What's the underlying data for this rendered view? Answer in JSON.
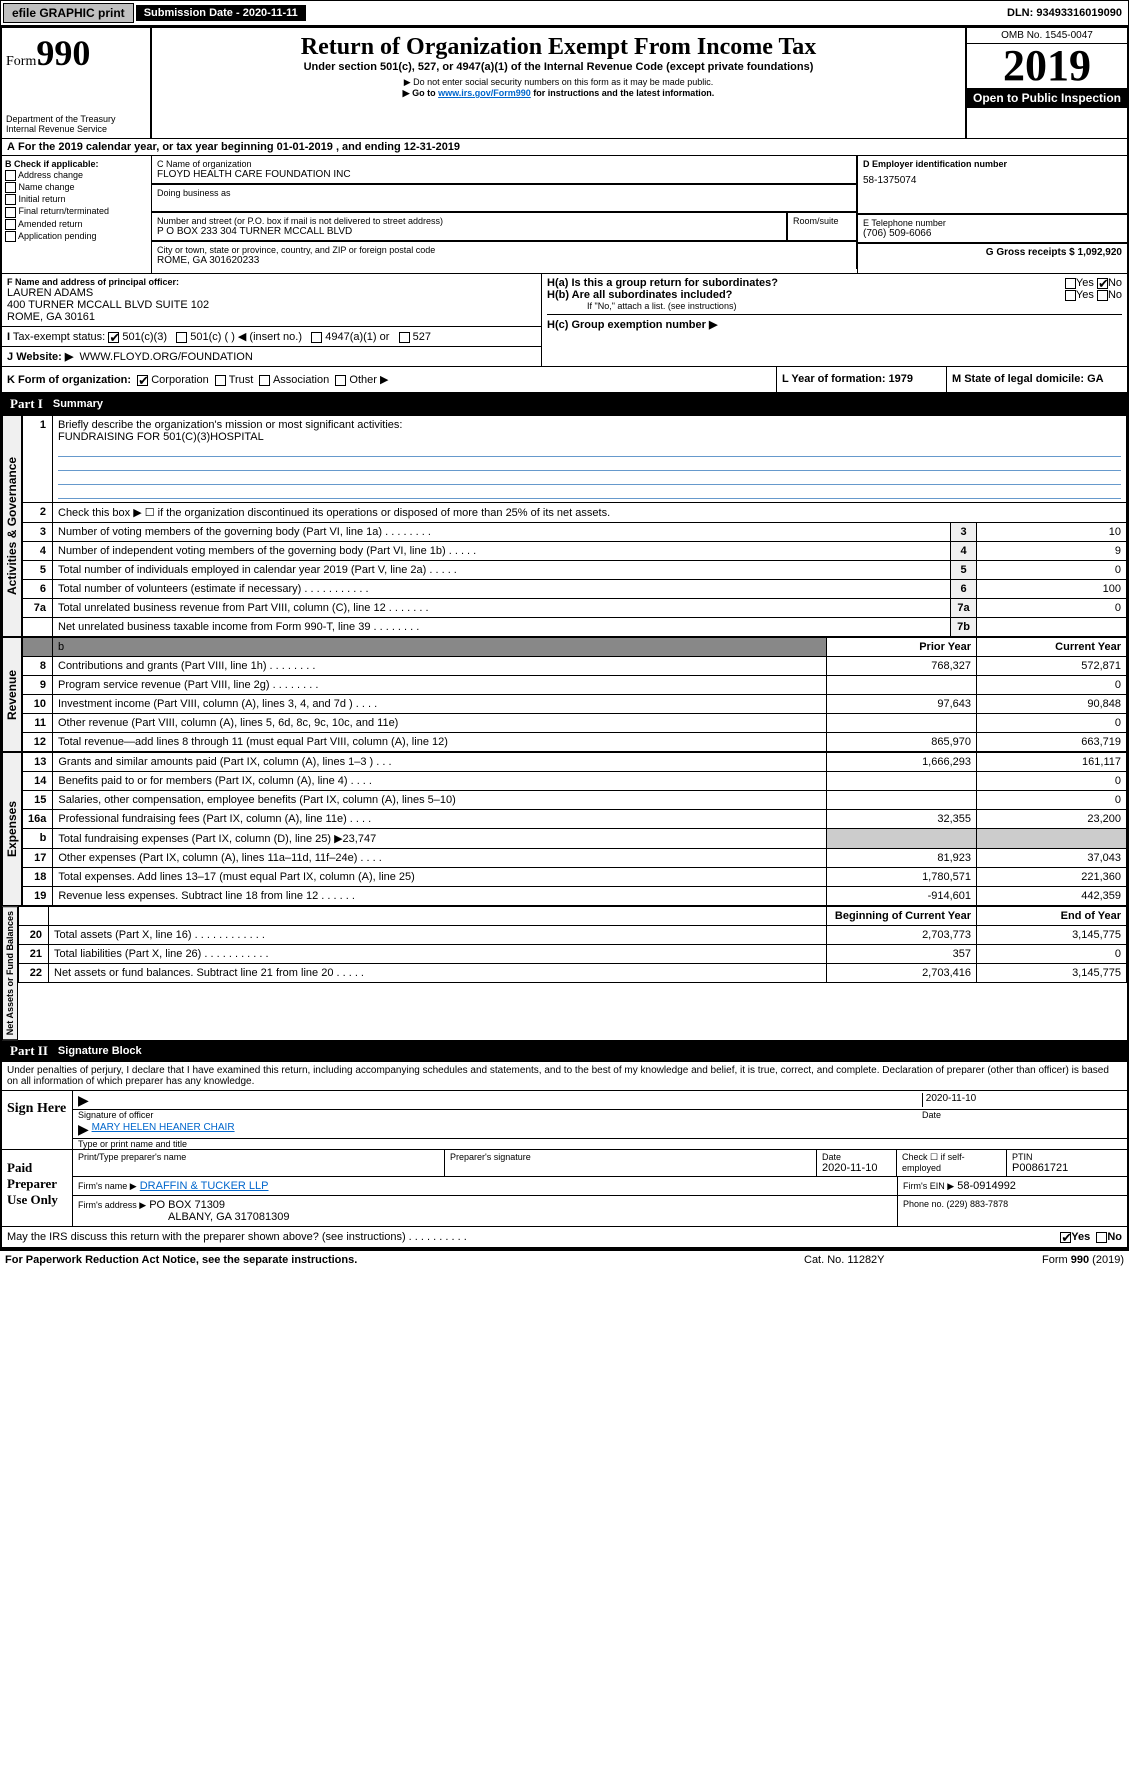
{
  "topbar": {
    "efile": "efile GRAPHIC print",
    "submission_label": "Submission Date - 2020-11-11",
    "dln": "DLN: 93493316019090"
  },
  "header": {
    "form_label": "Form",
    "form_number": "990",
    "dept": "Department of the Treasury",
    "irs": "Internal Revenue Service",
    "title": "Return of Organization Exempt From Income Tax",
    "subtitle1": "Under section 501(c), 527, or 4947(a)(1) of the Internal Revenue Code (except private foundations)",
    "subtitle2": "▶ Do not enter social security numbers on this form as it may be made public.",
    "subtitle3_pre": "▶ Go to ",
    "subtitle3_link": "www.irs.gov/Form990",
    "subtitle3_post": " for instructions and the latest information.",
    "omb": "OMB No. 1545-0047",
    "year": "2019",
    "inspect": "Open to Public Inspection"
  },
  "line_a": "For the 2019 calendar year, or tax year beginning 01-01-2019     , and ending 12-31-2019",
  "box_b": {
    "header": "B Check if applicable:",
    "opts": [
      "Address change",
      "Name change",
      "Initial return",
      "Final return/terminated",
      "Amended return",
      "Application pending"
    ]
  },
  "box_c": {
    "name_label": "C Name of organization",
    "name": "FLOYD HEALTH CARE FOUNDATION INC",
    "dba_label": "Doing business as",
    "dba": "",
    "addr_label": "Number and street (or P.O. box if mail is not delivered to street address)",
    "room_label": "Room/suite",
    "addr": "P O BOX 233 304 TURNER MCCALL BLVD",
    "city_label": "City or town, state or province, country, and ZIP or foreign postal code",
    "city": "ROME, GA  301620233"
  },
  "box_d": {
    "label": "D Employer identification number",
    "val": "58-1375074"
  },
  "box_e": {
    "label": "E Telephone number",
    "val": "(706) 509-6066"
  },
  "box_g": {
    "label": "G Gross receipts $ 1,092,920"
  },
  "box_f": {
    "label": "F  Name and address of principal officer:",
    "name": "LAUREN ADAMS",
    "addr1": "400 TURNER MCCALL BLVD SUITE 102",
    "addr2": "ROME, GA  30161"
  },
  "box_h": {
    "a": "H(a)  Is this a group return for subordinates?",
    "b": "H(b)  Are all subordinates included?",
    "b_note": "If \"No,\" attach a list. (see instructions)",
    "c": "H(c)  Group exemption number ▶",
    "yes": "Yes",
    "no": "No"
  },
  "box_i": {
    "label": "Tax-exempt status:",
    "opts": [
      "501(c)(3)",
      "501(c) (   ) ◀ (insert no.)",
      "4947(a)(1) or",
      "527"
    ]
  },
  "box_j": {
    "label": "Website: ▶",
    "val": "WWW.FLOYD.ORG/FOUNDATION"
  },
  "box_k": {
    "label": "K Form of organization:",
    "opts": [
      "Corporation",
      "Trust",
      "Association",
      "Other ▶"
    ]
  },
  "box_l": {
    "label": "L Year of formation: 1979"
  },
  "box_m": {
    "label": "M State of legal domicile: GA"
  },
  "part1": {
    "num": "Part I",
    "title": "Summary",
    "vlabels": [
      "Activities & Governance",
      "Revenue",
      "Expenses",
      "Net Assets or Fund Balances"
    ],
    "l1_label": "Briefly describe the organization's mission or most significant activities:",
    "l1_text": "FUNDRAISING FOR 501(C)(3)HOSPITAL",
    "l2": "Check this box ▶ ☐  if the organization discontinued its operations or disposed of more than 25% of its net assets.",
    "rows_simple": [
      {
        "n": "3",
        "t": "Number of voting members of the governing body (Part VI, line 1a)   .   .   .   .   .   .   .   .",
        "box": "3",
        "v": "10"
      },
      {
        "n": "4",
        "t": "Number of independent voting members of the governing body (Part VI, line 1b)   .   .   .   .   .",
        "box": "4",
        "v": "9"
      },
      {
        "n": "5",
        "t": "Total number of individuals employed in calendar year 2019 (Part V, line 2a)   .   .   .   .   .",
        "box": "5",
        "v": "0"
      },
      {
        "n": "6",
        "t": "Total number of volunteers (estimate if necessary)   .   .   .   .   .   .   .   .   .   .   .",
        "box": "6",
        "v": "100"
      },
      {
        "n": "7a",
        "t": "Total unrelated business revenue from Part VIII, column (C), line 12   .   .   .   .   .   .   .",
        "box": "7a",
        "v": "0"
      },
      {
        "n": "",
        "t": "Net unrelated business taxable income from Form 990-T, line 39   .   .   .   .   .   .   .   .",
        "box": "7b",
        "v": ""
      }
    ],
    "col_hdr_prior": "Prior Year",
    "col_hdr_current": "Current Year",
    "rows_rev": [
      {
        "n": "8",
        "t": "Contributions and grants (Part VIII, line 1h)   .   .   .   .   .   .   .   .",
        "p": "768,327",
        "c": "572,871"
      },
      {
        "n": "9",
        "t": "Program service revenue (Part VIII, line 2g)   .   .   .   .   .   .   .   .",
        "p": "",
        "c": "0"
      },
      {
        "n": "10",
        "t": "Investment income (Part VIII, column (A), lines 3, 4, and 7d )   .   .   .   .",
        "p": "97,643",
        "c": "90,848"
      },
      {
        "n": "11",
        "t": "Other revenue (Part VIII, column (A), lines 5, 6d, 8c, 9c, 10c, and 11e)",
        "p": "",
        "c": "0"
      },
      {
        "n": "12",
        "t": "Total revenue—add lines 8 through 11 (must equal Part VIII, column (A), line 12)",
        "p": "865,970",
        "c": "663,719"
      }
    ],
    "rows_exp": [
      {
        "n": "13",
        "t": "Grants and similar amounts paid (Part IX, column (A), lines 1–3 )   .   .   .",
        "p": "1,666,293",
        "c": "161,117"
      },
      {
        "n": "14",
        "t": "Benefits paid to or for members (Part IX, column (A), line 4)   .   .   .   .",
        "p": "",
        "c": "0"
      },
      {
        "n": "15",
        "t": "Salaries, other compensation, employee benefits (Part IX, column (A), lines 5–10)",
        "p": "",
        "c": "0"
      },
      {
        "n": "16a",
        "t": "Professional fundraising fees (Part IX, column (A), line 11e)   .   .   .   .",
        "p": "32,355",
        "c": "23,200"
      },
      {
        "n": "b",
        "t": "Total fundraising expenses (Part IX, column (D), line 25) ▶23,747",
        "p": null,
        "c": null
      },
      {
        "n": "17",
        "t": "Other expenses (Part IX, column (A), lines 11a–11d, 11f–24e)   .   .   .   .",
        "p": "81,923",
        "c": "37,043"
      },
      {
        "n": "18",
        "t": "Total expenses. Add lines 13–17 (must equal Part IX, column (A), line 25)",
        "p": "1,780,571",
        "c": "221,360"
      },
      {
        "n": "19",
        "t": "Revenue less expenses. Subtract line 18 from line 12   .   .   .   .   .   .",
        "p": "-914,601",
        "c": "442,359"
      }
    ],
    "col_hdr_begin": "Beginning of Current Year",
    "col_hdr_end": "End of Year",
    "rows_net": [
      {
        "n": "20",
        "t": "Total assets (Part X, line 16)   .   .   .   .   .   .   .   .   .   .   .   .",
        "p": "2,703,773",
        "c": "3,145,775"
      },
      {
        "n": "21",
        "t": "Total liabilities (Part X, line 26)   .   .   .   .   .   .   .   .   .   .   .",
        "p": "357",
        "c": "0"
      },
      {
        "n": "22",
        "t": "Net assets or fund balances. Subtract line 21 from line 20   .   .   .   .   .",
        "p": "2,703,416",
        "c": "3,145,775"
      }
    ]
  },
  "part2": {
    "num": "Part II",
    "title": "Signature Block",
    "perjury": "Under penalties of perjury, I declare that I have examined this return, including accompanying schedules and statements, and to the best of my knowledge and belief, it is true, correct, and complete. Declaration of preparer (other than officer) is based on all information of which preparer has any knowledge.",
    "sign_here": "Sign Here",
    "sig_officer": "Signature of officer",
    "sig_date": "2020-11-10",
    "sig_date_label": "Date",
    "officer_name": "MARY HELEN HEANER CHAIR",
    "officer_name_label": "Type or print name and title",
    "paid": "Paid Preparer Use Only",
    "prep_name_label": "Print/Type preparer's name",
    "prep_sig_label": "Preparer's signature",
    "prep_date_label": "Date",
    "prep_date": "2020-11-10",
    "check_if": "Check ☐ if self-employed",
    "ptin_label": "PTIN",
    "ptin": "P00861721",
    "firm_name_label": "Firm's name     ▶",
    "firm_name": "DRAFFIN & TUCKER LLP",
    "firm_ein_label": "Firm's EIN ▶",
    "firm_ein": "58-0914992",
    "firm_addr_label": "Firm's address ▶",
    "firm_addr1": "PO BOX 71309",
    "firm_addr2": "ALBANY, GA  317081309",
    "firm_phone_label": "Phone no. (229) 883-7878"
  },
  "footer": {
    "discuss": "May the IRS discuss this return with the preparer shown above? (see instructions)   .   .   .   .   .   .   .   .   .   .",
    "yes": "Yes",
    "no": "No",
    "pra": "For Paperwork Reduction Act Notice, see the separate instructions.",
    "cat": "Cat. No. 11282Y",
    "form": "Form 990 (2019)"
  }
}
